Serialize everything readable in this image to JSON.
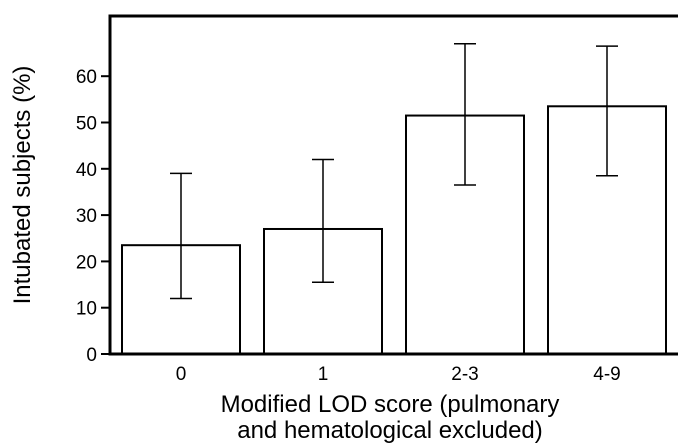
{
  "chart_data": {
    "type": "bar",
    "categories": [
      "0",
      "1",
      "2-3",
      "4-9"
    ],
    "values": [
      23.5,
      27,
      51.5,
      53.5
    ],
    "error_low": [
      12,
      15.5,
      36.5,
      38.5
    ],
    "error_high": [
      39,
      42,
      67,
      66.5
    ],
    "xlabel_line1": "Modified LOD score (pulmonary",
    "xlabel_line2": "and hematological excluded)",
    "ylabel": "Intubated subjects (%)",
    "yticks": [
      "0",
      "10",
      "20",
      "30",
      "40",
      "50",
      "60"
    ],
    "ylim": [
      0,
      73
    ],
    "grid": false,
    "bar_color": "#ffffff",
    "line_color": "#000000"
  }
}
